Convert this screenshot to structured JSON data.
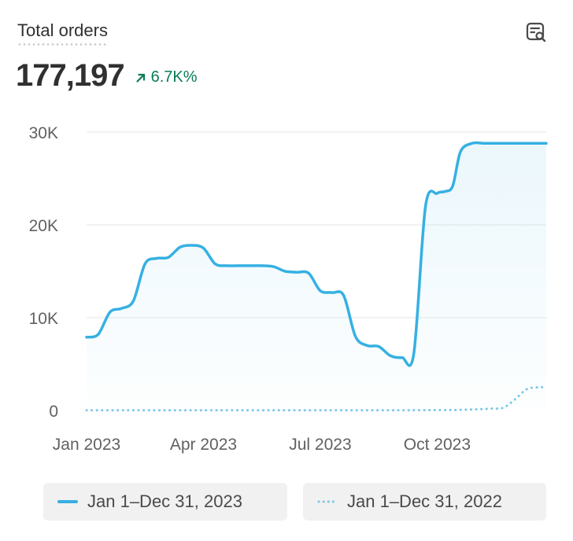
{
  "header": {
    "title": "Total orders",
    "value": "177,197",
    "change": "6.7K%",
    "change_color": "#0a7d55"
  },
  "icons": {
    "explore": "chart-explore-icon",
    "change_arrow": "arrow-up-right-icon"
  },
  "colors": {
    "primary": "#36b0e2",
    "secondary": "#7cc6e8",
    "grid": "#e6e6e6",
    "axis_text": "#616161"
  },
  "chart_data": {
    "type": "line",
    "title": "Total orders",
    "x_ticks": [
      "Jan 2023",
      "Apr 2023",
      "Jul 2023",
      "Oct 2023"
    ],
    "x_tick_months": [
      0,
      3,
      6,
      9
    ],
    "y_ticks": [
      "0",
      "10K",
      "20K",
      "30K"
    ],
    "y_tick_values": [
      0,
      10000,
      20000,
      30000
    ],
    "ylim": [
      0,
      30000
    ],
    "xlim_months": [
      0,
      11.8
    ],
    "series": [
      {
        "name": "Jan 1–Dec 31, 2023",
        "style": "solid",
        "x": [
          0,
          0.3,
          0.6,
          0.9,
          1.2,
          1.5,
          1.8,
          2.1,
          2.4,
          2.7,
          3.0,
          3.3,
          3.6,
          3.9,
          4.2,
          4.5,
          4.8,
          5.1,
          5.4,
          5.7,
          6.0,
          6.3,
          6.6,
          6.9,
          7.2,
          7.5,
          7.8,
          8.1,
          8.4,
          8.7,
          9.0,
          9.2,
          9.4,
          9.6,
          9.9,
          10.2,
          10.5,
          10.8,
          11.1,
          11.4,
          11.7,
          11.8
        ],
        "values": [
          7900,
          8200,
          10600,
          11000,
          11800,
          15800,
          16400,
          16500,
          17600,
          17800,
          17500,
          15800,
          15600,
          15600,
          15600,
          15600,
          15500,
          15000,
          14900,
          14800,
          12900,
          12700,
          12400,
          8000,
          7000,
          6900,
          5900,
          5700,
          6100,
          22000,
          23400,
          23600,
          24200,
          27900,
          28800,
          28800,
          28800,
          28800,
          28800,
          28800,
          28800,
          28800
        ]
      },
      {
        "name": "Jan 1–Dec 31, 2022",
        "style": "dotted",
        "x": [
          0,
          1,
          2,
          3,
          4,
          5,
          6,
          7,
          8,
          9,
          9.5,
          10.0,
          10.4,
          10.7,
          11.0,
          11.3,
          11.6,
          11.8
        ],
        "values": [
          20,
          20,
          20,
          20,
          20,
          20,
          20,
          20,
          20,
          40,
          60,
          120,
          200,
          300,
          1200,
          2300,
          2500,
          2500
        ]
      }
    ]
  },
  "legend": [
    {
      "label": "Jan 1–Dec 31, 2023"
    },
    {
      "label": "Jan 1–Dec 31, 2022"
    }
  ]
}
